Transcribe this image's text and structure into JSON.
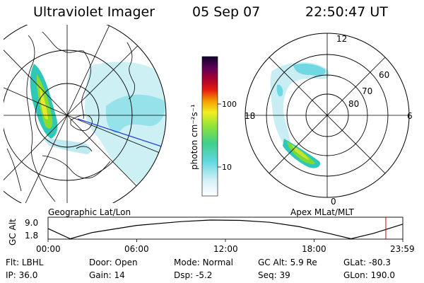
{
  "header": {
    "instrument": "Ultraviolet Imager",
    "date": "05 Sep 07",
    "time": "22:50:47 UT"
  },
  "colorbar": {
    "unit_label": "photon cm⁻²s⁻¹",
    "ticks": [
      "100",
      "10"
    ]
  },
  "left_map": {
    "caption": "Geographic Lat/Lon"
  },
  "right_map": {
    "caption": "Apex MLat/MLT",
    "mlt_labels": {
      "top": "12",
      "left": "18",
      "right": "6",
      "bottom": "0"
    },
    "lat_labels": [
      "60",
      "70",
      "80"
    ]
  },
  "timeline": {
    "ylabel": "GC Alt",
    "y_ticks": [
      "9.0",
      "1.8"
    ],
    "x_ticks": [
      "00:00",
      "06:00",
      "12:00",
      "18:00",
      "23:59"
    ],
    "marker_hour": 22.85,
    "marker_color": "#cc0000"
  },
  "info": {
    "row1": [
      {
        "label": "Flt:",
        "value": "LBHL"
      },
      {
        "label": "Door:",
        "value": "Open"
      },
      {
        "label": "Mode:",
        "value": "Normal"
      },
      {
        "label": "GC Alt:",
        "value": "5.9 Re"
      },
      {
        "label": "GLat:",
        "value": "-80.3"
      }
    ],
    "row2": [
      {
        "label": "IP:",
        "value": "36.0"
      },
      {
        "label": "Gain:",
        "value": "14"
      },
      {
        "label": "Dsp:",
        "value": "-5.2"
      },
      {
        "label": "Seq:",
        "value": "39"
      },
      {
        "label": "GLon:",
        "value": "190.0"
      }
    ]
  }
}
